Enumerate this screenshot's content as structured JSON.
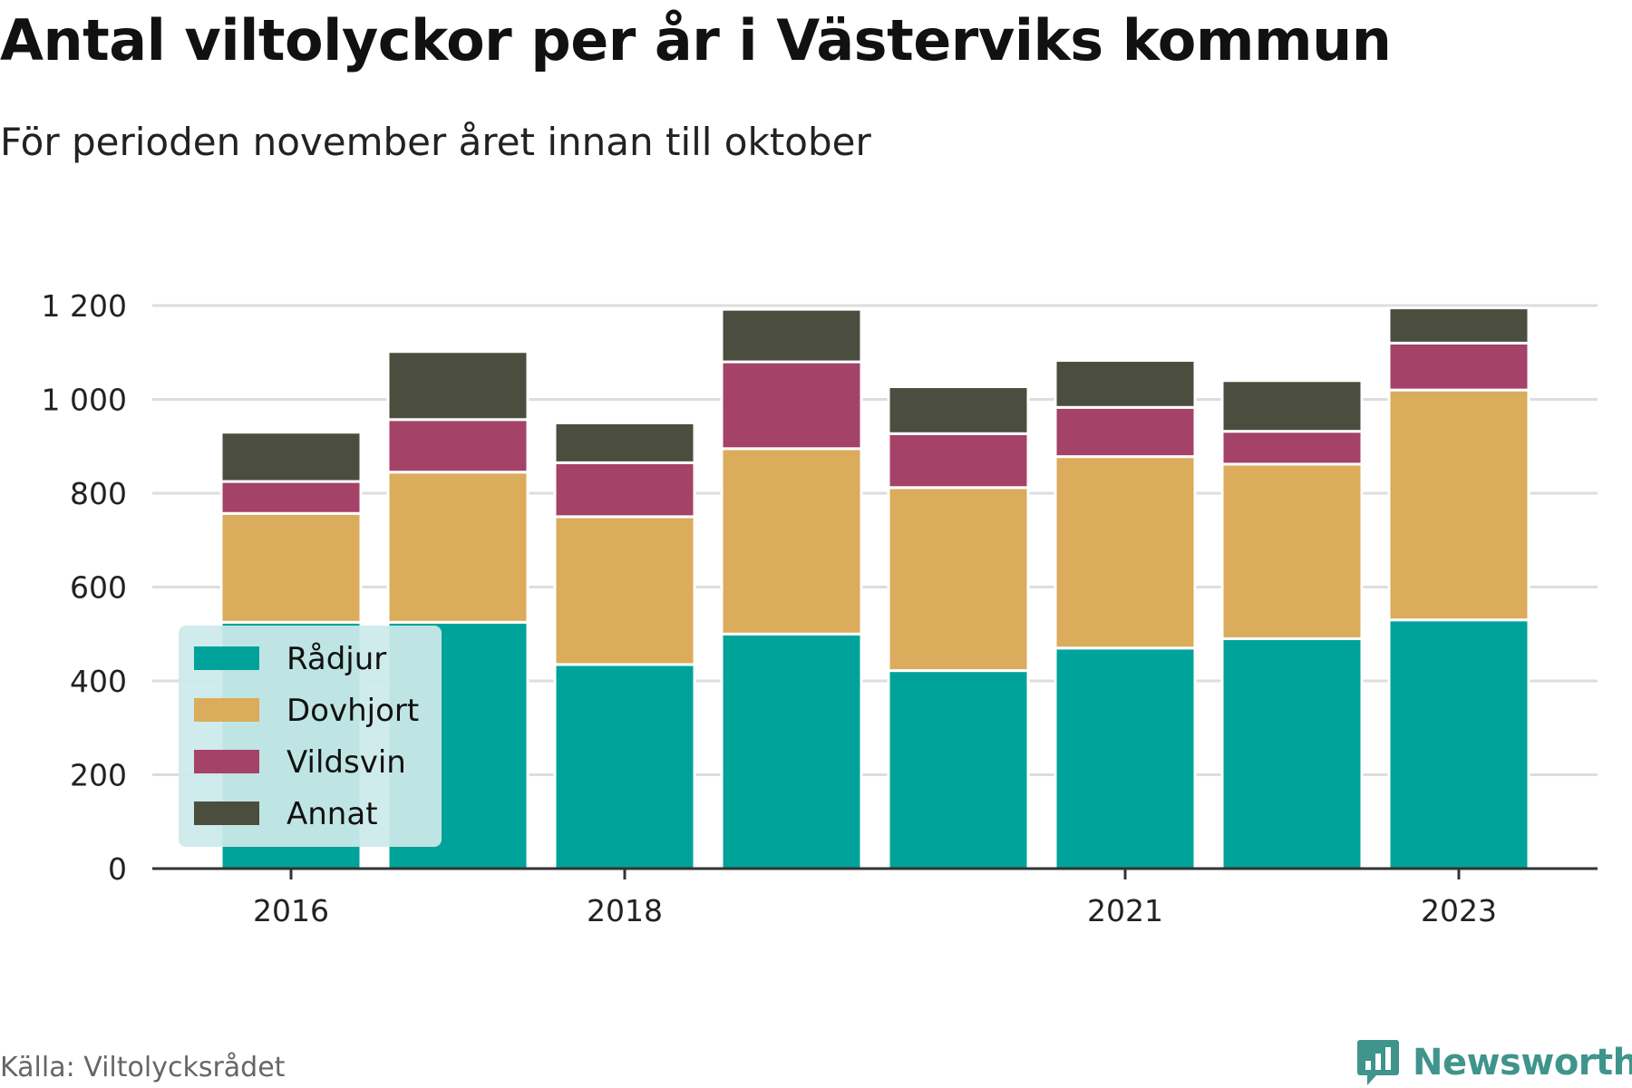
{
  "header": {
    "title": "Antal viltolyckor per år i Västerviks kommun",
    "subtitle": "För perioden november året innan till oktober"
  },
  "footer": {
    "source": "Källa: Viltolycksrådet",
    "brand": "Newsworthy",
    "brand_icon": "bar-chart-speech-bubble-icon"
  },
  "colors": {
    "Rådjur": "#00a39a",
    "Dovhjort": "#dbac5b",
    "Vildsvin": "#a44268",
    "Annat": "#4b4e3f",
    "grid": "#dddddd",
    "axis": "#333333",
    "legend_bg": "#cceaea",
    "brand": "#3f948c"
  },
  "chart_data": {
    "type": "bar",
    "stacked": true,
    "x": [
      2016,
      2017,
      2018,
      2019,
      2020,
      2021,
      2022,
      2023
    ],
    "x_tick_labels": [
      "2016",
      "2018",
      "2021",
      "2023"
    ],
    "x_tick_values": [
      2016,
      2018,
      2021,
      2023
    ],
    "y_ticks": [
      0,
      200,
      400,
      600,
      800,
      1000,
      1200
    ],
    "y_tick_labels": [
      "0",
      "200",
      "400",
      "600",
      "800",
      "1 000",
      "1 200"
    ],
    "ylim": [
      0,
      1200
    ],
    "grid": true,
    "legend_position": "bottom-left",
    "series": [
      {
        "name": "Rådjur",
        "values": [
          525,
          525,
          435,
          500,
          422,
          470,
          490,
          530
        ]
      },
      {
        "name": "Dovhjort",
        "values": [
          232,
          320,
          315,
          395,
          390,
          408,
          372,
          490
        ]
      },
      {
        "name": "Vildsvin",
        "values": [
          68,
          112,
          115,
          185,
          115,
          105,
          70,
          100
        ]
      },
      {
        "name": "Annat",
        "values": [
          105,
          145,
          85,
          112,
          100,
          100,
          108,
          75
        ]
      }
    ]
  }
}
